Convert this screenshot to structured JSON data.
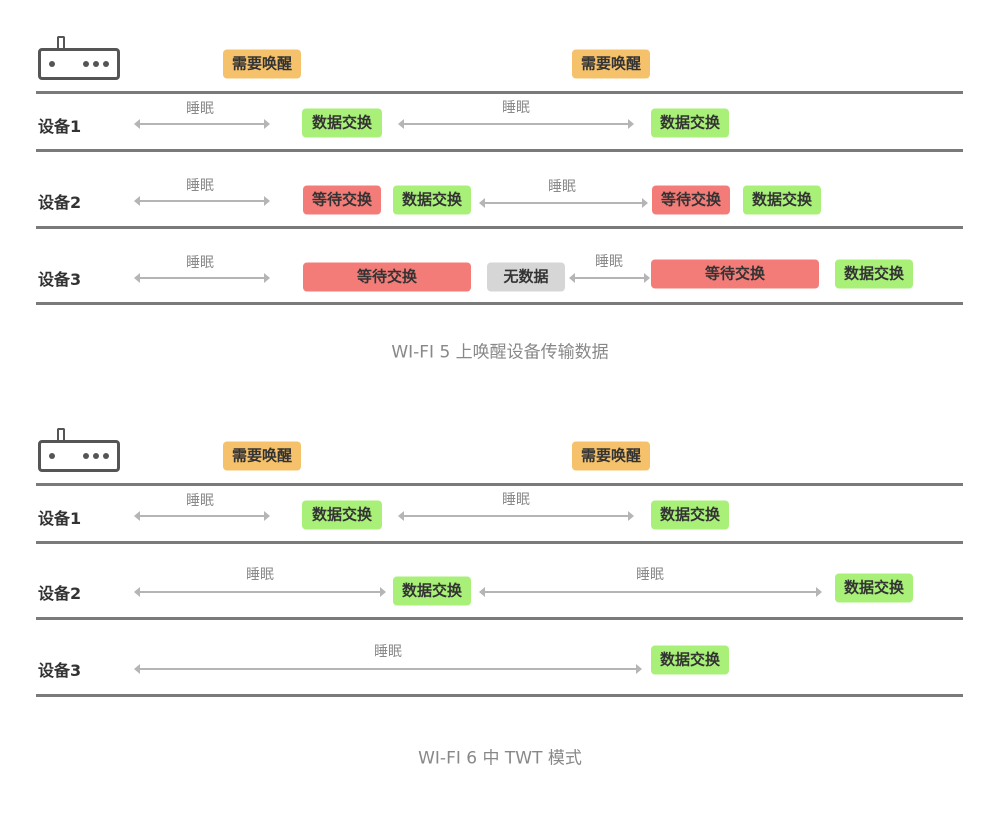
{
  "colors": {
    "wake": "#f5c26b",
    "data_exchange": "#a8f078",
    "wait": "#f47c78",
    "no_data": "#d6d6d6",
    "line": "#7a7a7a"
  },
  "labels": {
    "wake": "需要唤醒",
    "sleep": "睡眠",
    "data_exchange": "数据交换",
    "wait": "等待交换",
    "no_data": "无数据",
    "device1": "设备1",
    "device2": "设备2",
    "device3": "设备3"
  },
  "diagrams": [
    {
      "caption": "WI-FI 5 上唤醒设备传输数据",
      "icon": "router-icon"
    },
    {
      "caption": "WI-FI 6 中 TWT 模式",
      "icon": "router-icon"
    }
  ]
}
